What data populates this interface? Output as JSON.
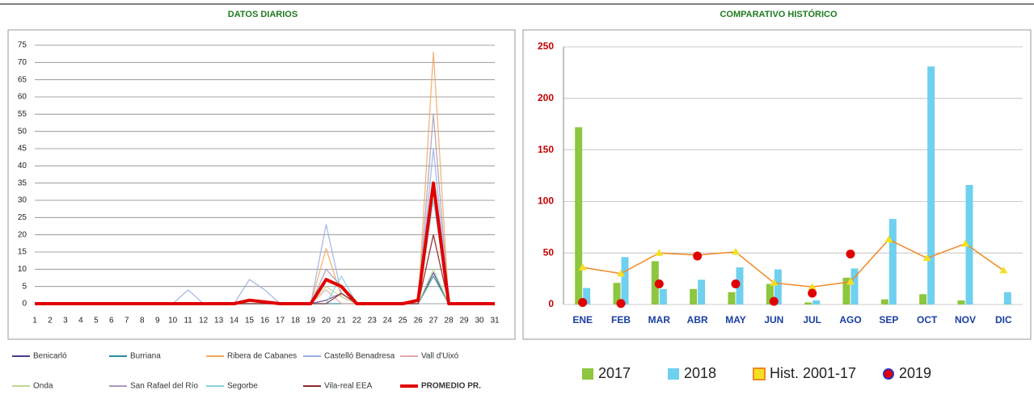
{
  "chart_data": [
    {
      "type": "line",
      "title": "DATOS DIARIOS",
      "categories": [
        1,
        2,
        3,
        4,
        5,
        6,
        7,
        8,
        9,
        10,
        11,
        12,
        13,
        14,
        15,
        16,
        17,
        18,
        19,
        20,
        21,
        22,
        23,
        24,
        25,
        26,
        27,
        28,
        29,
        30,
        31
      ],
      "ylim": [
        0,
        75
      ],
      "yticks": [
        0,
        5,
        10,
        15,
        20,
        25,
        30,
        35,
        40,
        45,
        50,
        55,
        60,
        65,
        70,
        75
      ],
      "grid": true,
      "series": [
        {
          "name": "Benicarló",
          "color": "#4b3a8c",
          "values": [
            0,
            0,
            0,
            0,
            0,
            0,
            0,
            0,
            0,
            0,
            0,
            0,
            0,
            0,
            0,
            0,
            0,
            0,
            0,
            1,
            3,
            0,
            0,
            0,
            0,
            0,
            9,
            0,
            0,
            0,
            0
          ]
        },
        {
          "name": "Burriana",
          "color": "#2a8c9c",
          "values": [
            0,
            0,
            0,
            0,
            0,
            0,
            0,
            0,
            0,
            0,
            0,
            0,
            0,
            0,
            0,
            0,
            0,
            0,
            0,
            0,
            0,
            0,
            0,
            0,
            0,
            0,
            8,
            0,
            0,
            0,
            0
          ]
        },
        {
          "name": "Ribera de Cabanes",
          "color": "#f0a860",
          "values": [
            0,
            0,
            0,
            0,
            0,
            0,
            0,
            0,
            0,
            0,
            0,
            0,
            0,
            0,
            0,
            0,
            0,
            0,
            0,
            16,
            2,
            0,
            0,
            0,
            0,
            0,
            73,
            0,
            0,
            0,
            0
          ]
        },
        {
          "name": "Castelló Benadresa",
          "color": "#9aaee0",
          "values": [
            0,
            0,
            0,
            0,
            0,
            0,
            0,
            0,
            0,
            0,
            4,
            0,
            0,
            0,
            7,
            4,
            0,
            0,
            0,
            23,
            3,
            0,
            0,
            0,
            0,
            0,
            45,
            0,
            0,
            0,
            0
          ]
        },
        {
          "name": "Vall d'Uixó",
          "color": "#e0a8a8",
          "values": [
            0,
            0,
            0,
            0,
            0,
            0,
            0,
            0,
            0,
            0,
            0,
            0,
            0,
            0,
            0,
            0,
            0,
            0,
            0,
            4,
            0,
            0,
            0,
            0,
            0,
            0,
            20,
            0,
            0,
            0,
            0
          ]
        },
        {
          "name": "Onda",
          "color": "#bcd890",
          "values": [
            0,
            0,
            0,
            0,
            0,
            0,
            0,
            0,
            0,
            0,
            0,
            0,
            0,
            0,
            0,
            0,
            0,
            0,
            0,
            5,
            2,
            0,
            0,
            0,
            0,
            0,
            10,
            0,
            0,
            0,
            0
          ]
        },
        {
          "name": "San Rafael del Río",
          "color": "#a89ab8",
          "values": [
            0,
            0,
            0,
            0,
            0,
            0,
            0,
            0,
            0,
            0,
            0,
            0,
            0,
            0,
            0,
            0,
            0,
            0,
            0,
            10,
            5,
            0,
            0,
            0,
            0,
            0,
            55,
            0,
            0,
            0,
            0
          ]
        },
        {
          "name": "Segorbe",
          "color": "#88d0dc",
          "values": [
            0,
            0,
            0,
            0,
            0,
            0,
            0,
            0,
            0,
            0,
            0,
            0,
            0,
            0,
            0,
            0,
            0,
            0,
            0,
            0,
            8,
            0,
            0,
            0,
            0,
            0,
            30,
            0,
            0,
            0,
            0
          ]
        },
        {
          "name": "Vila-real EEA",
          "color": "#8b2a2a",
          "values": [
            0,
            0,
            0,
            0,
            0,
            0,
            0,
            0,
            0,
            0,
            0,
            0,
            0,
            0,
            0,
            0,
            0,
            0,
            0,
            0,
            3,
            0,
            0,
            0,
            0,
            0,
            20,
            0,
            0,
            0,
            0
          ]
        },
        {
          "name": "PROMEDIO PR.",
          "color": "#e00000",
          "values": [
            0,
            0,
            0,
            0,
            0,
            0,
            0,
            0,
            0,
            0,
            0,
            0,
            0,
            0,
            1,
            0.5,
            0,
            0,
            0,
            7,
            5,
            0,
            0,
            0,
            0,
            1,
            35,
            0,
            0,
            0,
            0
          ]
        }
      ]
    },
    {
      "type": "bar",
      "title": "COMPARATIVO HISTÓRICO",
      "categories": [
        "ENE",
        "FEB",
        "MAR",
        "ABR",
        "MAY",
        "JUN",
        "JUL",
        "AGO",
        "SEP",
        "OCT",
        "NOV",
        "DIC"
      ],
      "ylim": [
        0,
        250
      ],
      "yticks": [
        0,
        50,
        100,
        150,
        200,
        250
      ],
      "grid": true,
      "series": [
        {
          "name": "2017",
          "type": "bar",
          "color": "#8dc63f",
          "values": [
            172,
            21,
            42,
            15,
            12,
            20,
            2,
            26,
            5,
            10,
            4,
            null
          ]
        },
        {
          "name": "2018",
          "type": "bar",
          "color": "#6fd0f0",
          "values": [
            16,
            46,
            15,
            24,
            36,
            34,
            4,
            35,
            83,
            231,
            116,
            12
          ]
        },
        {
          "name": "Hist. 2001-17",
          "type": "line",
          "color": "#f08a24",
          "marker_color": "#f5e020",
          "values": [
            36,
            30,
            50,
            48,
            51,
            21,
            17,
            22,
            63,
            45,
            59,
            33
          ]
        },
        {
          "name": "2019",
          "type": "scatter",
          "color": "#e00000",
          "values": [
            2,
            1,
            20,
            47,
            20,
            3,
            11,
            49,
            null,
            null,
            null,
            null
          ]
        }
      ]
    }
  ]
}
